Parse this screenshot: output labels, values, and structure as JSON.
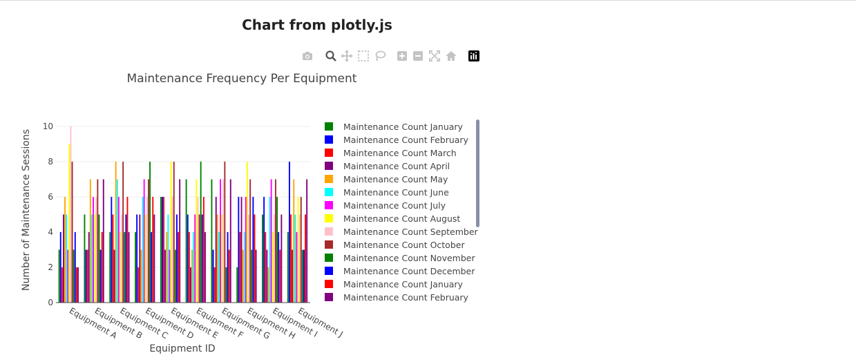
{
  "page": {
    "title": "Chart from plotly.js"
  },
  "toolbar": {
    "buttons": [
      {
        "name": "camera-icon",
        "title": "Download plot as a png"
      },
      {
        "name": "zoom-icon",
        "title": "Zoom"
      },
      {
        "name": "pan-icon",
        "title": "Pan"
      },
      {
        "name": "box-select-icon",
        "title": "Box Select"
      },
      {
        "name": "lasso-icon",
        "title": "Lasso Select"
      },
      {
        "name": "zoom-in-icon",
        "title": "Zoom in"
      },
      {
        "name": "zoom-out-icon",
        "title": "Zoom out"
      },
      {
        "name": "autoscale-icon",
        "title": "Autoscale"
      },
      {
        "name": "home-icon",
        "title": "Reset axes"
      },
      {
        "name": "plotly-logo-icon",
        "title": "Produced with Plotly"
      }
    ]
  },
  "chart_data": {
    "type": "bar",
    "title": "Maintenance Frequency Per Equipment",
    "xlabel": "Equipment ID",
    "ylabel": "Number of Maintenance Sessions",
    "ylim": [
      0,
      10
    ],
    "yticks": [
      0,
      2,
      4,
      6,
      8,
      10
    ],
    "grid": true,
    "legend_position": "right",
    "categories": [
      "Equipment A",
      "Equipment B",
      "Equipment C",
      "Equipment D",
      "Equipment E",
      "Equipment F",
      "Equipment G",
      "Equipment H",
      "Equipment I",
      "Equipment J"
    ],
    "series": [
      {
        "name": "Maintenance Count January",
        "color": "#008000",
        "values": [
          3,
          5,
          4,
          4,
          6,
          7,
          7,
          2,
          5,
          4
        ]
      },
      {
        "name": "Maintenance Count February",
        "color": "#0000ff",
        "values": [
          4,
          3,
          6,
          5,
          6,
          5,
          3,
          6,
          6,
          8
        ]
      },
      {
        "name": "Maintenance Count March",
        "color": "#ff0000",
        "values": [
          2,
          3,
          5,
          2,
          6,
          4,
          2,
          4,
          4,
          5
        ]
      },
      {
        "name": "Maintenance Count April",
        "color": "#800080",
        "values": [
          5,
          4,
          3,
          5,
          3,
          2,
          6,
          6,
          3,
          3
        ]
      },
      {
        "name": "Maintenance Count May",
        "color": "#ffa500",
        "values": [
          6,
          7,
          8,
          3,
          4,
          3,
          5,
          3,
          2,
          7
        ]
      },
      {
        "name": "Maintenance Count June",
        "color": "#00ffff",
        "values": [
          5,
          5,
          7,
          6,
          5,
          4,
          4,
          4,
          6,
          5
        ]
      },
      {
        "name": "Maintenance Count July",
        "color": "#ff00ff",
        "values": [
          3,
          6,
          6,
          7,
          3,
          5,
          7,
          6,
          7,
          4
        ]
      },
      {
        "name": "Maintenance Count August",
        "color": "#ffff00",
        "values": [
          9,
          5,
          4,
          5,
          8,
          7,
          5,
          8,
          4,
          6
        ]
      },
      {
        "name": "Maintenance Count September",
        "color": "#ffc0cb",
        "values": [
          10,
          6,
          5,
          6,
          6,
          6,
          7,
          5,
          5,
          5
        ]
      },
      {
        "name": "Maintenance Count October",
        "color": "#a52a2a",
        "values": [
          8,
          7,
          8,
          7,
          8,
          5,
          8,
          7,
          7,
          6
        ]
      },
      {
        "name": "Maintenance Count November",
        "color": "#008000",
        "values": [
          3,
          5,
          4,
          8,
          3,
          8,
          2,
          3,
          6,
          3
        ]
      },
      {
        "name": "Maintenance Count December",
        "color": "#0000ff",
        "values": [
          4,
          3,
          5,
          4,
          5,
          5,
          4,
          6,
          4,
          3
        ]
      },
      {
        "name": "Maintenance Count January",
        "color": "#ff0000",
        "values": [
          2,
          4,
          6,
          6,
          4,
          6,
          3,
          5,
          3,
          5
        ]
      },
      {
        "name": "Maintenance Count February",
        "color": "#800080",
        "values": [
          2,
          7,
          4,
          5,
          7,
          4,
          7,
          3,
          5,
          7
        ]
      }
    ]
  }
}
